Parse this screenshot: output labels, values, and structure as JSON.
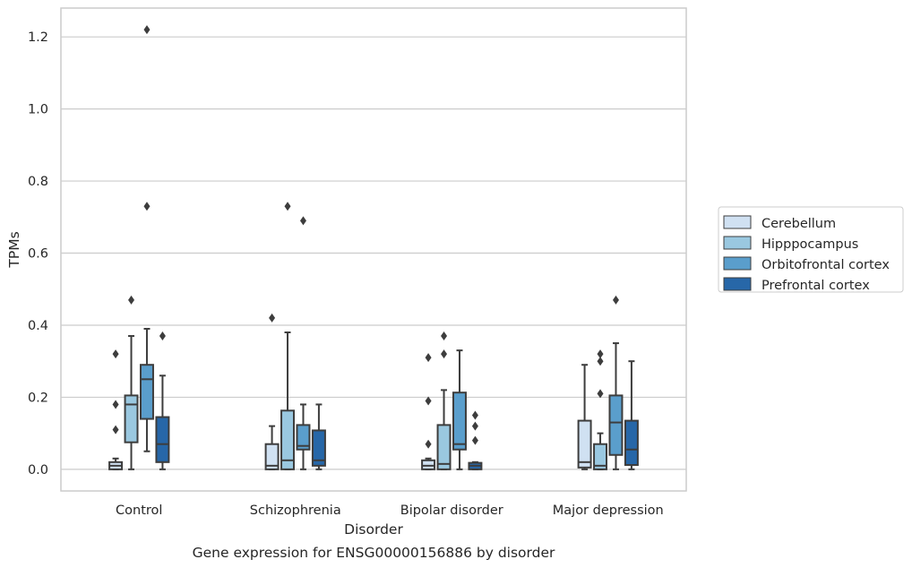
{
  "chart_data": {
    "type": "box",
    "caption": "Gene expression for ENSG00000156886 by disorder",
    "xlabel": "Disorder",
    "ylabel": "TPMs",
    "ylim": [
      -0.06,
      1.28
    ],
    "yticks": [
      "0.0",
      "0.2",
      "0.4",
      "0.6",
      "0.8",
      "1.0",
      "1.2"
    ],
    "ytick_values": [
      0.0,
      0.2,
      0.4,
      0.6,
      0.8,
      1.0,
      1.2
    ],
    "grid": "horizontal",
    "legend_position": "right",
    "categories": [
      "Control",
      "Schizophrenia",
      "Bipolar disorder",
      "Major depression"
    ],
    "series": [
      {
        "name": "Cerebellum",
        "color": "#d0e1f2",
        "boxes": [
          {
            "whisker_low": 0.0,
            "q1": 0.0,
            "median": 0.01,
            "q3": 0.02,
            "whisker_high": 0.03,
            "outliers": [
              0.11,
              0.18,
              0.32
            ]
          },
          {
            "whisker_low": 0.0,
            "q1": 0.0,
            "median": 0.01,
            "q3": 0.07,
            "whisker_high": 0.12,
            "outliers": [
              0.42
            ]
          },
          {
            "whisker_low": 0.0,
            "q1": 0.0,
            "median": 0.01,
            "q3": 0.025,
            "whisker_high": 0.03,
            "outliers": [
              0.07,
              0.19,
              0.31
            ]
          },
          {
            "whisker_low": 0.0,
            "q1": 0.005,
            "median": 0.02,
            "q3": 0.135,
            "whisker_high": 0.29,
            "outliers": []
          }
        ]
      },
      {
        "name": "Hipppocampus",
        "color": "#9ac8e0",
        "boxes": [
          {
            "whisker_low": 0.0,
            "q1": 0.075,
            "median": 0.18,
            "q3": 0.205,
            "whisker_high": 0.37,
            "outliers": [
              0.47
            ]
          },
          {
            "whisker_low": 0.0,
            "q1": 0.0,
            "median": 0.025,
            "q3": 0.163,
            "whisker_high": 0.38,
            "outliers": [
              0.73
            ]
          },
          {
            "whisker_low": 0.0,
            "q1": 0.0,
            "median": 0.015,
            "q3": 0.123,
            "whisker_high": 0.22,
            "outliers": [
              0.32,
              0.37
            ]
          },
          {
            "whisker_low": 0.0,
            "q1": 0.0,
            "median": 0.01,
            "q3": 0.07,
            "whisker_high": 0.1,
            "outliers": [
              0.21,
              0.3,
              0.32
            ]
          }
        ]
      },
      {
        "name": "Orbitofrontal cortex",
        "color": "#5a9ecc",
        "boxes": [
          {
            "whisker_low": 0.05,
            "q1": 0.14,
            "median": 0.25,
            "q3": 0.29,
            "whisker_high": 0.39,
            "outliers": [
              0.73,
              1.22
            ]
          },
          {
            "whisker_low": 0.0,
            "q1": 0.055,
            "median": 0.065,
            "q3": 0.123,
            "whisker_high": 0.18,
            "outliers": [
              0.69
            ]
          },
          {
            "whisker_low": 0.0,
            "q1": 0.055,
            "median": 0.07,
            "q3": 0.213,
            "whisker_high": 0.33,
            "outliers": []
          },
          {
            "whisker_low": 0.0,
            "q1": 0.04,
            "median": 0.13,
            "q3": 0.205,
            "whisker_high": 0.35,
            "outliers": [
              0.47
            ]
          }
        ]
      },
      {
        "name": "Prefrontal cortex",
        "color": "#2767a8",
        "boxes": [
          {
            "whisker_low": 0.0,
            "q1": 0.02,
            "median": 0.07,
            "q3": 0.145,
            "whisker_high": 0.26,
            "outliers": [
              0.37
            ]
          },
          {
            "whisker_low": 0.0,
            "q1": 0.01,
            "median": 0.025,
            "q3": 0.108,
            "whisker_high": 0.18,
            "outliers": []
          },
          {
            "whisker_low": 0.0,
            "q1": 0.0,
            "median": 0.01,
            "q3": 0.018,
            "whisker_high": 0.02,
            "outliers": [
              0.08,
              0.12,
              0.15
            ]
          },
          {
            "whisker_low": 0.0,
            "q1": 0.012,
            "median": 0.055,
            "q3": 0.135,
            "whisker_high": 0.3,
            "outliers": []
          }
        ]
      }
    ]
  }
}
